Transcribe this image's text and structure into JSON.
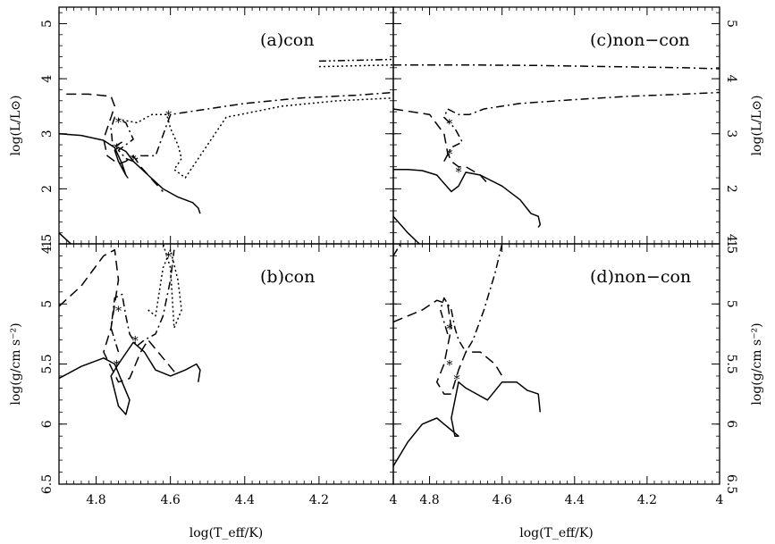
{
  "chart_data": {
    "type": "line",
    "xlabel": "log(T_eff/K)",
    "xlim": [
      4.9,
      4.0
    ],
    "x_ticks": [
      "4.8",
      "4.6",
      "4.4",
      "4.2",
      "4"
    ],
    "panels": [
      {
        "id": "a",
        "label": "(a)con",
        "ylabel": "log(L/L⊙)",
        "ylim": [
          1.0,
          5.3
        ],
        "y_ticks": [
          "1",
          "2",
          "3",
          "4",
          "5"
        ],
        "series": [
          {
            "style": "solid",
            "x": [
              4.9,
              4.84,
              4.78,
              4.75,
              4.73,
              4.72,
              4.715,
              4.72,
              4.74,
              4.75,
              4.74,
              4.72,
              4.7,
              4.66,
              4.62,
              4.58,
              4.54,
              4.525,
              4.52
            ],
            "y": [
              3.0,
              2.97,
              2.88,
              2.75,
              2.45,
              2.25,
              2.2,
              2.25,
              2.5,
              2.7,
              2.75,
              2.68,
              2.5,
              2.25,
              2.0,
              1.85,
              1.75,
              1.65,
              1.55
            ]
          },
          {
            "style": "solid",
            "x": [
              4.9,
              4.86,
              4.82
            ],
            "y": [
              1.2,
              0.95,
              0.7
            ]
          },
          {
            "style": "dashed",
            "x": [
              4.88,
              4.82,
              4.76,
              4.75,
              4.76,
              4.77,
              4.78,
              4.77,
              4.74,
              4.72,
              4.7,
              4.68,
              4.64,
              4.62
            ],
            "y": [
              3.72,
              3.72,
              3.68,
              3.5,
              3.3,
              3.1,
              2.9,
              2.6,
              2.45,
              2.5,
              2.6,
              2.4,
              2.1,
              1.95
            ]
          },
          {
            "style": "dashdot",
            "x": [
              4.73,
              4.755,
              4.76,
              4.75,
              4.72,
              4.7,
              4.74,
              4.72,
              4.7,
              4.68,
              4.64,
              4.6,
              4.5,
              4.4,
              4.25,
              4.1,
              4.0
            ],
            "y": [
              2.85,
              2.75,
              3.1,
              3.3,
              3.2,
              2.9,
              2.7,
              2.55,
              2.5,
              2.6,
              2.6,
              3.35,
              3.45,
              3.55,
              3.65,
              3.7,
              3.75
            ]
          },
          {
            "style": "dotted",
            "x": [
              4.73,
              4.69,
              4.65,
              4.61,
              4.6,
              4.58,
              4.57,
              4.59,
              4.56,
              4.45,
              4.3,
              4.15,
              4.0
            ],
            "y": [
              3.25,
              3.2,
              3.35,
              3.35,
              3.1,
              2.8,
              2.55,
              2.35,
              2.2,
              3.3,
              3.5,
              3.6,
              3.65
            ]
          },
          {
            "style": "dashdotdot",
            "x": [
              4.2,
              4.0
            ],
            "y": [
              4.32,
              4.35
            ]
          },
          {
            "style": "dotted",
            "x": [
              4.2,
              4.0
            ],
            "y": [
              4.22,
              4.25
            ]
          }
        ]
      },
      {
        "id": "c",
        "label": "(c)non−con",
        "ylabel": "log(L/L⊙)",
        "ylim": [
          1.0,
          5.3
        ],
        "y_ticks": [
          "1",
          "2",
          "3",
          "4",
          "5"
        ],
        "series": [
          {
            "style": "solid",
            "x": [
              4.9,
              4.86,
              4.82,
              4.78,
              4.76,
              4.74,
              4.72,
              4.7,
              4.66,
              4.6,
              4.55,
              4.52,
              4.5,
              4.495,
              4.5
            ],
            "y": [
              2.35,
              2.35,
              2.33,
              2.25,
              2.1,
              1.95,
              2.05,
              2.3,
              2.25,
              2.05,
              1.8,
              1.55,
              1.5,
              1.35,
              1.3
            ]
          },
          {
            "style": "solid",
            "x": [
              4.9,
              4.86,
              4.82,
              4.79
            ],
            "y": [
              1.5,
              1.2,
              0.95,
              0.7
            ]
          },
          {
            "style": "dashed",
            "x": [
              4.9,
              4.8,
              4.76,
              4.75,
              4.74,
              4.72,
              4.7,
              4.66,
              4.64
            ],
            "y": [
              3.45,
              3.35,
              3.0,
              2.65,
              2.5,
              2.4,
              2.4,
              2.25,
              2.1
            ]
          },
          {
            "style": "dashdot",
            "x": [
              4.9,
              4.7,
              4.5,
              4.3,
              4.1,
              4.0
            ],
            "y": [
              4.25,
              4.25,
              4.24,
              4.22,
              4.2,
              4.18
            ]
          },
          {
            "style": "dashdot",
            "x": [
              4.76,
              4.74,
              4.71,
              4.73,
              4.76,
              4.75,
              4.72,
              4.69,
              4.65,
              4.55,
              4.4,
              4.25,
              4.1,
              4.0
            ],
            "y": [
              2.5,
              2.75,
              2.85,
              3.1,
              3.3,
              3.45,
              3.35,
              3.35,
              3.45,
              3.55,
              3.62,
              3.68,
              3.72,
              3.75
            ]
          }
        ]
      },
      {
        "id": "b",
        "label": "(b)con",
        "ylabel": "log(g/cm s⁻²)",
        "ylim": [
          6.5,
          4.5
        ],
        "y_ticks": [
          "4.5",
          "5",
          "5.5",
          "6",
          "6.5"
        ],
        "series": [
          {
            "style": "solid",
            "x": [
              4.9,
              4.84,
              4.78,
              4.75,
              4.73,
              4.71,
              4.72,
              4.74,
              4.76,
              4.74,
              4.7,
              4.67,
              4.64,
              4.6,
              4.56,
              4.53,
              4.52,
              4.525
            ],
            "y": [
              5.62,
              5.52,
              5.45,
              5.5,
              5.65,
              5.8,
              5.92,
              5.85,
              5.6,
              5.5,
              5.32,
              5.4,
              5.55,
              5.6,
              5.55,
              5.5,
              5.55,
              5.65
            ]
          },
          {
            "style": "dashed",
            "x": [
              4.9,
              4.84,
              4.78,
              4.75,
              4.74,
              4.76,
              4.78,
              4.74,
              4.71,
              4.68,
              4.66,
              4.62,
              4.58
            ],
            "y": [
              5.02,
              4.85,
              4.6,
              4.55,
              4.8,
              5.2,
              5.4,
              5.65,
              5.62,
              5.4,
              5.3,
              5.45,
              5.6
            ]
          },
          {
            "style": "dashdot",
            "x": [
              4.74,
              4.76,
              4.75,
              4.73,
              4.72,
              4.71,
              4.69,
              4.67,
              4.64,
              4.62,
              4.6,
              4.59
            ],
            "y": [
              5.4,
              5.2,
              4.95,
              4.92,
              5.1,
              5.25,
              5.35,
              5.3,
              5.25,
              5.1,
              4.8,
              4.55
            ]
          },
          {
            "style": "dotted",
            "x": [
              4.66,
              4.64,
              4.62,
              4.6,
              4.58,
              4.57,
              4.59,
              4.6,
              4.62,
              4.63
            ],
            "y": [
              5.05,
              5.1,
              4.7,
              4.55,
              4.8,
              5.05,
              5.2,
              4.7,
              4.5,
              4.45
            ]
          }
        ]
      },
      {
        "id": "d",
        "label": "(d)non−con",
        "ylabel": "log(g/cm s⁻²)",
        "ylim": [
          6.5,
          4.5
        ],
        "y_ticks": [
          "4.5",
          "5",
          "5.5",
          "6",
          "6.5"
        ],
        "series": [
          {
            "style": "solid",
            "x": [
              4.9,
              4.86,
              4.82,
              4.78,
              4.76,
              4.74,
              4.72,
              4.73,
              4.74,
              4.72,
              4.7,
              4.67,
              4.64,
              4.6,
              4.56,
              4.53,
              4.5,
              4.495
            ],
            "y": [
              6.35,
              6.15,
              6.0,
              5.95,
              6.0,
              6.05,
              6.1,
              6.1,
              5.95,
              5.65,
              5.7,
              5.75,
              5.8,
              5.65,
              5.65,
              5.72,
              5.75,
              5.9
            ]
          },
          {
            "style": "dashed",
            "x": [
              4.9,
              4.82,
              4.78,
              4.75,
              4.74,
              4.76,
              4.78,
              4.76,
              4.74,
              4.72,
              4.7,
              4.66,
              4.62,
              4.6
            ],
            "y": [
              5.15,
              5.05,
              4.97,
              5.0,
              5.2,
              5.5,
              5.65,
              5.75,
              5.75,
              5.55,
              5.4,
              5.4,
              5.5,
              5.6
            ]
          },
          {
            "style": "dashdot",
            "x": [
              4.75,
              4.77,
              4.76,
              4.74,
              4.73,
              4.72,
              4.7,
              4.68,
              4.65,
              4.62,
              4.6
            ],
            "y": [
              5.25,
              5.05,
              4.95,
              5.05,
              5.2,
              5.3,
              5.4,
              5.3,
              5.05,
              4.75,
              4.5
            ]
          },
          {
            "style": "dashdot",
            "x": [
              4.9,
              4.88
            ],
            "y": [
              4.6,
              4.5
            ]
          }
        ]
      }
    ],
    "markers": [
      {
        "panel": "a",
        "x": [
          4.745,
          4.74,
          4.7,
          4.605
        ],
        "y": [
          2.75,
          3.22,
          2.55,
          3.35
        ]
      },
      {
        "panel": "c",
        "x": [
          4.745,
          4.745,
          4.72
        ],
        "y": [
          3.2,
          2.65,
          2.32
        ]
      },
      {
        "panel": "b",
        "x": [
          4.745,
          4.74,
          4.695,
          4.605
        ],
        "y": [
          5.5,
          5.05,
          5.3,
          4.6
        ]
      },
      {
        "panel": "d",
        "x": [
          4.745,
          4.745,
          4.725
        ],
        "y": [
          5.5,
          5.2,
          5.62
        ]
      }
    ]
  }
}
